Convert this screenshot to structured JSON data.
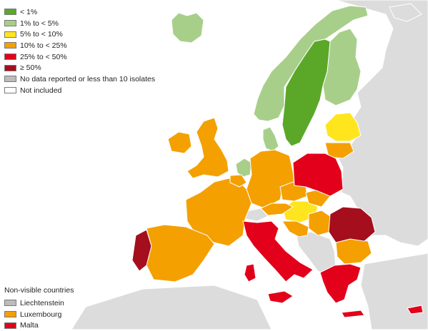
{
  "colors": {
    "sea": "#ffffff",
    "non_eu": "#dcdcdc",
    "border": "#ffffff",
    "lt1": "#5ba829",
    "c1to5": "#a8cf8a",
    "c5to10": "#ffe51e",
    "c10to25": "#f4a000",
    "c25to50": "#e2001a",
    "ge50": "#a50e1c",
    "no_data": "#bcbcbc",
    "not_included": "#ffffff"
  },
  "legend": {
    "items": [
      {
        "label": "< 1%",
        "color": "#5ba829"
      },
      {
        "label": "1% to < 5%",
        "color": "#a8cf8a"
      },
      {
        "label": "5% to < 10%",
        "color": "#ffe51e"
      },
      {
        "label": "10% to < 25%",
        "color": "#f4a000"
      },
      {
        "label": "25% to < 50%",
        "color": "#e2001a"
      },
      {
        "label": "≥ 50%",
        "color": "#a50e1c"
      },
      {
        "label": "No data reported or less than 10 isolates",
        "color": "#bcbcbc"
      },
      {
        "label": "Not included",
        "color": "#ffffff"
      }
    ]
  },
  "non_visible": {
    "title": "Non-visible countries",
    "items": [
      {
        "label": "Liechtenstein",
        "color": "#bcbcbc"
      },
      {
        "label": "Luxembourg",
        "color": "#f4a000"
      },
      {
        "label": "Malta",
        "color": "#e2001a"
      }
    ]
  }
}
